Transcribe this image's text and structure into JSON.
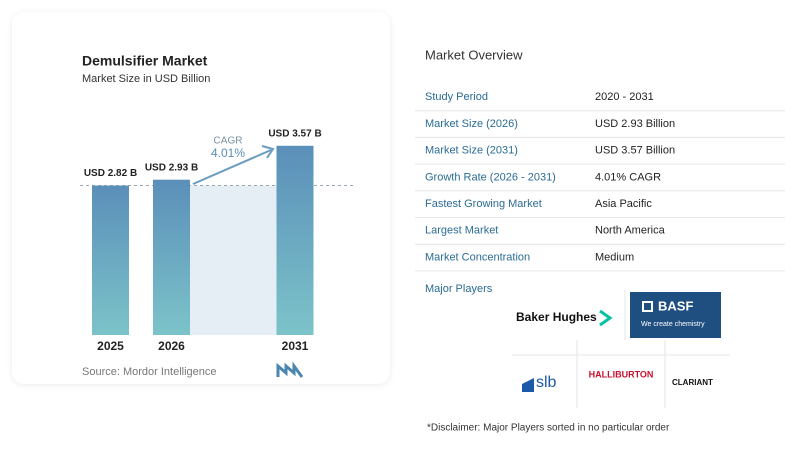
{
  "chart_data": {
    "type": "bar",
    "title": "Demulsifier Market",
    "subtitle": "Market Size in USD Billion",
    "categories": [
      "2025",
      "2026",
      "2031"
    ],
    "values": [
      2.82,
      2.93,
      3.57
    ],
    "value_labels": [
      "USD 2.82 B",
      "USD 2.93 B",
      "USD 3.57 B"
    ],
    "color": "#5b8fb9",
    "annotation": {
      "label": "CAGR",
      "value": "4.01%"
    },
    "source": "Source: Mordor Intelligence"
  },
  "overview": {
    "title": "Market Overview",
    "rows": [
      [
        "Study Period",
        "2020 - 2031"
      ],
      [
        "Market Size (2026)",
        "USD 2.93 Billion"
      ],
      [
        "Market Size (2031)",
        "USD 3.57 Billion"
      ],
      [
        "Growth Rate (2026 - 2031)",
        "4.01% CAGR"
      ],
      [
        "Fastest Growing Market",
        "Asia Pacific"
      ],
      [
        "Largest Market",
        "North America"
      ],
      [
        "Market Concentration",
        "Medium"
      ]
    ]
  },
  "players": {
    "title": "Major Players",
    "names": [
      "Baker Hughes",
      "BASF",
      "We create chemistry",
      "slb",
      "HALLIBURTON",
      "CLARIANT"
    ]
  },
  "disclaimer": "*Disclaimer: Major Players sorted in no particular order"
}
